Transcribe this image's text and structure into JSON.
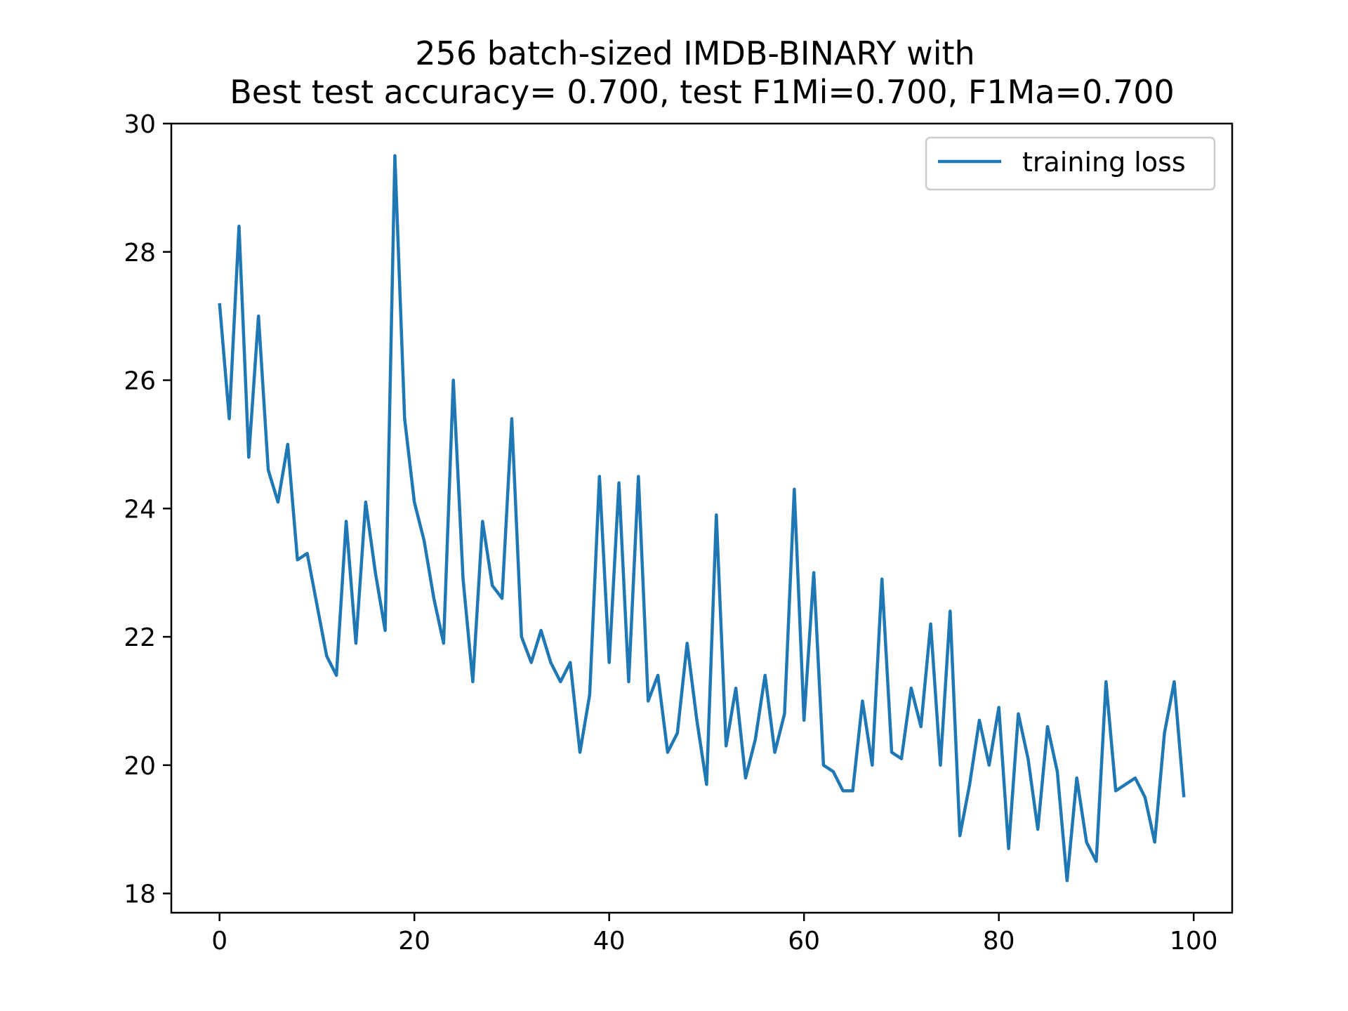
{
  "chart_data": {
    "type": "line",
    "title_line1": "256 batch-sized IMDB-BINARY with",
    "title_line2": "Best test accuracy= 0.700, test F1Mi=0.700, F1Ma=0.700",
    "xlabel": "",
    "ylabel": "",
    "xlim": [
      -4.95,
      103.95
    ],
    "ylim": [
      17.7,
      30.0
    ],
    "xticks": [
      0,
      20,
      40,
      60,
      80,
      100
    ],
    "yticks": [
      18,
      20,
      22,
      24,
      26,
      28,
      30
    ],
    "grid": false,
    "legend_position": "upper right",
    "series_color": "#1f77b4",
    "series": [
      {
        "name": "training loss",
        "x": [
          0,
          1,
          2,
          3,
          4,
          5,
          6,
          7,
          8,
          9,
          10,
          11,
          12,
          13,
          14,
          15,
          16,
          17,
          18,
          19,
          20,
          21,
          22,
          23,
          24,
          25,
          26,
          27,
          28,
          29,
          30,
          31,
          32,
          33,
          34,
          35,
          36,
          37,
          38,
          39,
          40,
          41,
          42,
          43,
          44,
          45,
          46,
          47,
          48,
          49,
          50,
          51,
          52,
          53,
          54,
          55,
          56,
          57,
          58,
          59,
          60,
          61,
          62,
          63,
          64,
          65,
          66,
          67,
          68,
          69,
          70,
          71,
          72,
          73,
          74,
          75,
          76,
          77,
          78,
          79,
          80,
          81,
          82,
          83,
          84,
          85,
          86,
          87,
          88,
          89,
          90,
          91,
          92,
          93,
          94,
          95,
          96,
          97,
          98,
          99
        ],
        "values": [
          27.2,
          25.4,
          28.4,
          24.8,
          27.0,
          24.6,
          24.1,
          25.0,
          23.2,
          23.3,
          22.5,
          21.7,
          21.4,
          23.8,
          21.9,
          24.1,
          23.0,
          22.1,
          29.5,
          25.4,
          24.1,
          23.5,
          22.6,
          21.9,
          26.0,
          22.9,
          21.3,
          23.8,
          22.8,
          22.6,
          25.4,
          22.0,
          21.6,
          22.1,
          21.6,
          21.3,
          21.6,
          20.2,
          21.1,
          24.5,
          21.6,
          24.4,
          21.3,
          24.5,
          21.0,
          21.4,
          20.2,
          20.5,
          21.9,
          20.7,
          19.7,
          23.9,
          20.3,
          21.2,
          19.8,
          20.4,
          21.4,
          20.2,
          20.8,
          24.3,
          20.7,
          23.0,
          20.0,
          19.9,
          19.6,
          19.6,
          21.0,
          20.0,
          22.9,
          20.2,
          20.1,
          21.2,
          20.6,
          22.2,
          20.0,
          22.4,
          18.9,
          19.7,
          20.7,
          20.0,
          20.9,
          18.7,
          20.8,
          20.1,
          19.0,
          20.6,
          19.9,
          18.2,
          19.8,
          18.8,
          18.5,
          21.3,
          19.6,
          19.7,
          19.8,
          19.5,
          18.8,
          20.5,
          21.3,
          19.5
        ]
      }
    ]
  }
}
